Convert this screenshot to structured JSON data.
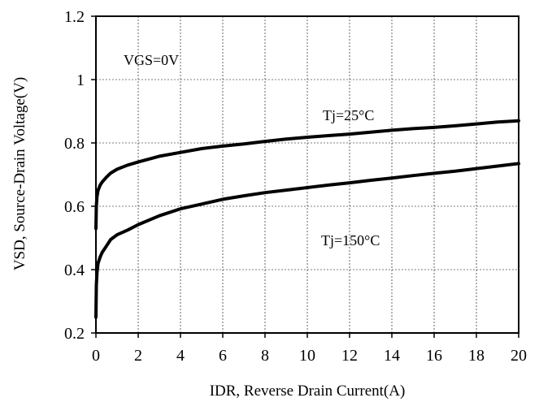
{
  "chart_data": {
    "type": "line",
    "xlabel": "IDR, Reverse Drain Current(A)",
    "ylabel": "VSD, Source-Drain Voltage(V)",
    "xlim": [
      0,
      20
    ],
    "ylim": [
      0.2,
      1.2
    ],
    "x_ticks": [
      "0",
      "2",
      "4",
      "6",
      "8",
      "10",
      "12",
      "14",
      "16",
      "18",
      "20"
    ],
    "y_ticks": [
      "0.2",
      "0.4",
      "0.6",
      "0.8",
      "1",
      "1.2"
    ],
    "grid": true,
    "annotations": {
      "condition": "VGS=0V",
      "tj25": "Tj=25°C",
      "tj150": "Tj=150°C"
    },
    "series": [
      {
        "name": "Tj=25°C",
        "x": [
          0,
          0.02,
          0.05,
          0.1,
          0.2,
          0.3,
          0.5,
          0.7,
          1,
          1.5,
          2,
          3,
          4,
          5,
          6,
          7,
          8,
          9,
          10,
          11,
          12,
          13,
          14,
          15,
          16,
          17,
          18,
          19,
          20
        ],
        "y": [
          0.53,
          0.6,
          0.63,
          0.65,
          0.667,
          0.677,
          0.692,
          0.705,
          0.717,
          0.73,
          0.74,
          0.758,
          0.77,
          0.782,
          0.79,
          0.797,
          0.805,
          0.812,
          0.818,
          0.823,
          0.828,
          0.834,
          0.84,
          0.845,
          0.849,
          0.854,
          0.86,
          0.866,
          0.87
        ]
      },
      {
        "name": "Tj=150°C",
        "x": [
          0,
          0.02,
          0.05,
          0.1,
          0.2,
          0.3,
          0.5,
          0.7,
          1,
          1.5,
          2,
          3,
          4,
          5,
          6,
          7,
          8,
          9,
          10,
          11,
          12,
          13,
          14,
          15,
          16,
          17,
          18,
          19,
          20
        ],
        "y": [
          0.25,
          0.35,
          0.39,
          0.42,
          0.44,
          0.455,
          0.475,
          0.495,
          0.51,
          0.525,
          0.542,
          0.57,
          0.592,
          0.607,
          0.622,
          0.633,
          0.643,
          0.651,
          0.659,
          0.667,
          0.674,
          0.682,
          0.689,
          0.697,
          0.704,
          0.711,
          0.719,
          0.727,
          0.735
        ]
      }
    ]
  }
}
